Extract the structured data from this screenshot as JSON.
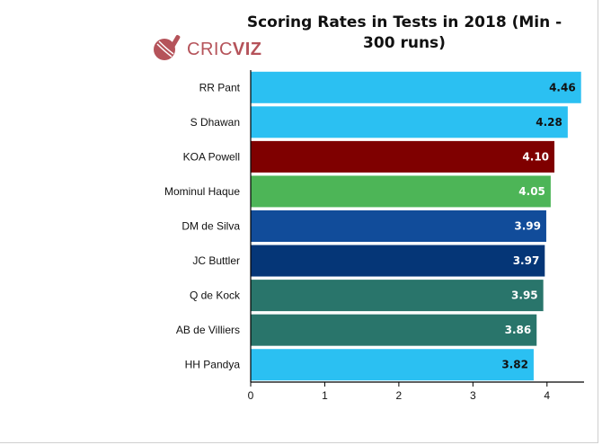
{
  "chart_data": {
    "type": "bar",
    "orientation": "horizontal",
    "title": "Scoring Rates in Tests in 2018 (Min - 300 runs)",
    "categories": [
      "RR Pant",
      "S Dhawan",
      "KOA Powell",
      "Mominul Haque",
      "DM de Silva",
      "JC Buttler",
      "Q de Kock",
      "AB de Villiers",
      "HH Pandya"
    ],
    "values": [
      4.46,
      4.28,
      4.1,
      4.05,
      3.99,
      3.97,
      3.95,
      3.86,
      3.82
    ],
    "value_labels": [
      "4.46",
      "4.28",
      "4.10",
      "4.05",
      "3.99",
      "3.97",
      "3.95",
      "3.86",
      "3.82"
    ],
    "colors": [
      "#2bc0f2",
      "#2bc0f2",
      "#7f0000",
      "#4db557",
      "#114c9a",
      "#053677",
      "#29756b",
      "#29756b",
      "#2bc0f2"
    ],
    "label_colors": [
      "#111111",
      "#111111",
      "#ffffff",
      "#ffffff",
      "#ffffff",
      "#ffffff",
      "#ffffff",
      "#ffffff",
      "#111111"
    ],
    "xlim": [
      0,
      4.5
    ],
    "xticks": [
      0,
      1,
      2,
      3,
      4
    ],
    "xtick_labels": [
      "0",
      "1",
      "2",
      "3",
      "4"
    ],
    "xlabel": "",
    "ylabel": "",
    "grid": false,
    "legend": "none"
  },
  "logo": {
    "text_light": "CRIC",
    "text_bold": "VIZ",
    "color": "#b5535a",
    "icon": "cricket-ball-bat-icon"
  }
}
